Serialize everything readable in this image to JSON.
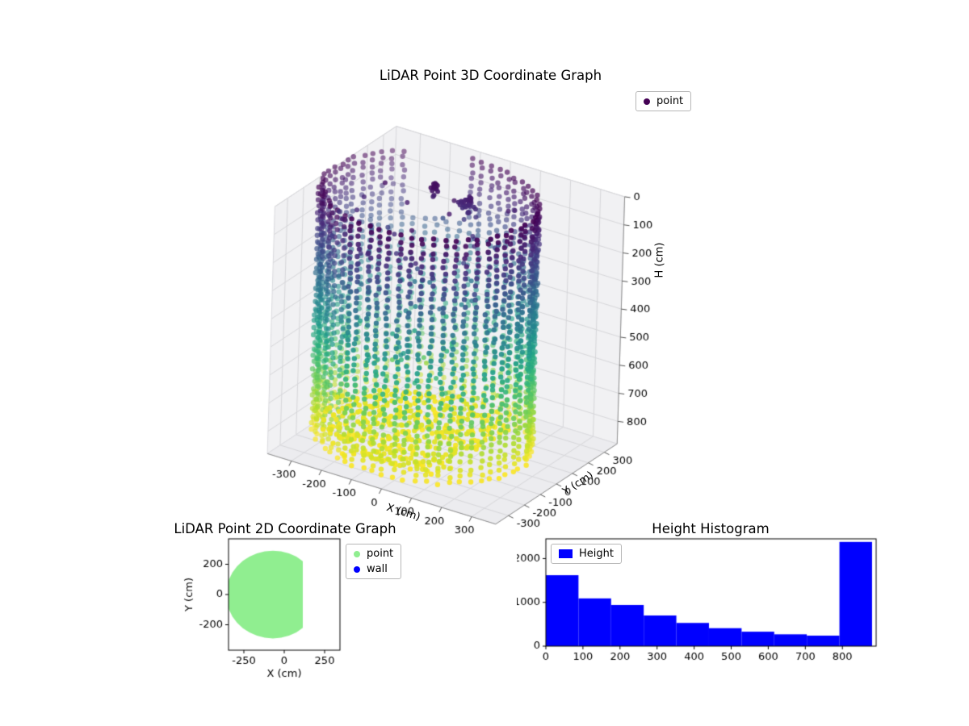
{
  "figure": {
    "background": "#ffffff"
  },
  "chart_data": [
    {
      "id": "plot3d",
      "type": "scatter",
      "projection": "3d",
      "title": "LiDAR Point 3D Coordinate Graph",
      "xlabel": "X (cm)",
      "ylabel": "Y (cm)",
      "zlabel": "H (cm)",
      "xticks": [
        -300,
        -200,
        -100,
        0,
        100,
        200,
        300
      ],
      "yticks": [
        -300,
        -200,
        -100,
        0,
        100,
        200,
        300
      ],
      "zticks": [
        0,
        100,
        200,
        300,
        400,
        500,
        600,
        700,
        800
      ],
      "xlim": [
        -380,
        380
      ],
      "ylim": [
        -380,
        380
      ],
      "zlim": [
        0,
        880
      ],
      "zaxis_inverted": true,
      "colormap": "viridis",
      "grid": true,
      "legend": {
        "position": "upper right",
        "entries": [
          {
            "label": "point",
            "color": "#440154",
            "marker": "circle"
          }
        ]
      },
      "series": [
        {
          "name": "point",
          "description": "cylindrical wall scan colored by height H (dark at H=0 top, yellow at H=870 floor) with floor scan disc",
          "generator": {
            "center_x": -65,
            "center_y": 0,
            "radius": 320,
            "height_min": 0,
            "height_max": 870,
            "angular_step_deg": 6,
            "vertical_step": 24,
            "gap_angle_min": 98,
            "gap_angle_max": 128,
            "gap_height_max": 230,
            "floor_height": 845,
            "floor_spread": 55,
            "floor_grid_step": 26,
            "floor_radius": 300,
            "floor_clip_x_max": 112,
            "interior_noise_count": 130,
            "noise_clusters": [
              {
                "x": -40,
                "y": 190,
                "h": 90,
                "n": 28,
                "spread": 22
              },
              {
                "x": -120,
                "y": 140,
                "h": 60,
                "n": 14,
                "spread": 14
              }
            ]
          }
        }
      ]
    },
    {
      "id": "plot2d",
      "type": "scatter",
      "title": "LiDAR Point 2D Coordinate Graph",
      "xlabel": "X (cm)",
      "ylabel": "Y (cm)",
      "xticks": [
        -250,
        0,
        250
      ],
      "yticks": [
        -200,
        0,
        200
      ],
      "xlim": [
        -345,
        345
      ],
      "ylim": [
        -368,
        368
      ],
      "legend": {
        "position": "outside right",
        "entries": [
          {
            "label": "point",
            "color": "#90ee90",
            "marker": "circle"
          },
          {
            "label": "wall",
            "color": "#0000ff",
            "marker": "circle"
          }
        ]
      },
      "region": {
        "description": "dense green point area: circle clipped on the right",
        "center": [
          -70,
          0
        ],
        "radius": 290,
        "clip_x_max": 115,
        "color": "#90ee90"
      }
    },
    {
      "id": "histogram",
      "type": "bar",
      "title": "Height Histogram",
      "bar_color": "#0000ff",
      "bin_edges": [
        0,
        88,
        176,
        264,
        352,
        440,
        528,
        616,
        704,
        792,
        880
      ],
      "counts": [
        1620,
        1090,
        940,
        700,
        530,
        410,
        330,
        270,
        240,
        2380
      ],
      "xticks": [
        0,
        100,
        200,
        300,
        400,
        500,
        600,
        700,
        800
      ],
      "yticks": [
        0,
        1000,
        2000
      ],
      "xlim": [
        0,
        891
      ],
      "ylim": [
        0,
        2450
      ],
      "legend": {
        "position": "upper left",
        "entries": [
          {
            "label": "Height",
            "color": "#0000ff",
            "marker": "square"
          }
        ]
      }
    }
  ]
}
